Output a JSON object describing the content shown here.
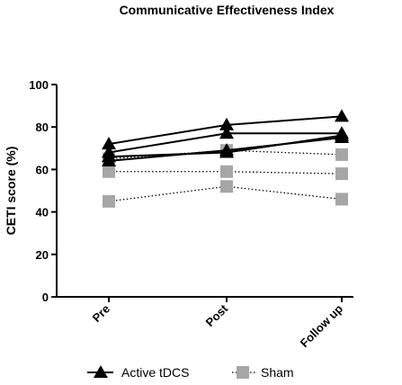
{
  "chart_data": {
    "type": "line",
    "title": "Communicative Effectiveness Index",
    "ylabel": "CETI score (%)",
    "xlabel": "",
    "categories": [
      "Pre",
      "Post",
      "Follow up"
    ],
    "ylim": [
      0,
      100
    ],
    "yticks": [
      0,
      20,
      40,
      60,
      80,
      100
    ],
    "grid": false,
    "legend_position": "bottom",
    "groups": [
      {
        "name": "Active tDCS",
        "marker": "triangle",
        "line_style": "solid",
        "color": "#000000",
        "series": [
          {
            "values": [
              72,
              81,
              85
            ]
          },
          {
            "values": [
              68,
              77,
              77
            ]
          },
          {
            "values": [
              66,
              68,
              76
            ]
          },
          {
            "values": [
              64,
              69,
              75
            ]
          }
        ]
      },
      {
        "name": "Sham",
        "marker": "square",
        "line_style": "dotted",
        "color": "#a6a6a6",
        "series": [
          {
            "values": [
              65,
              69,
              67
            ]
          },
          {
            "values": [
              59,
              59,
              58
            ]
          },
          {
            "values": [
              45,
              52,
              46
            ]
          }
        ]
      }
    ]
  }
}
